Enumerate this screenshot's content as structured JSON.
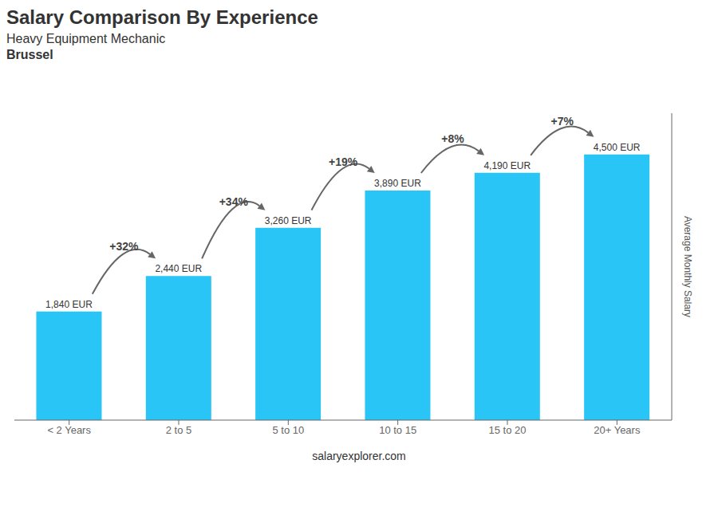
{
  "chart_data": {
    "type": "bar",
    "title": "Salary Comparison By Experience",
    "subtitle": "Heavy Equipment Mechanic",
    "annotations": [
      "Brussel",
      "salaryexplorer.com"
    ],
    "ylabel": "Average Monthly Salary",
    "categories": [
      "< 2 Years",
      "2 to 5",
      "5 to 10",
      "10 to 15",
      "15 to 20",
      "20+ Years"
    ],
    "values": [
      1840,
      2440,
      3260,
      3890,
      4190,
      4500
    ],
    "value_labels": [
      "1,840 EUR",
      "2,440 EUR",
      "3,260 EUR",
      "3,890 EUR",
      "4,190 EUR",
      "4,500 EUR"
    ],
    "data_labels": true,
    "pct_changes": [
      null,
      "+32%",
      "+34%",
      "+19%",
      "+8%",
      "+7%"
    ],
    "color": "#29c5f6",
    "ylim": [
      0,
      5200
    ],
    "tick_labels": "x",
    "grid": false
  }
}
